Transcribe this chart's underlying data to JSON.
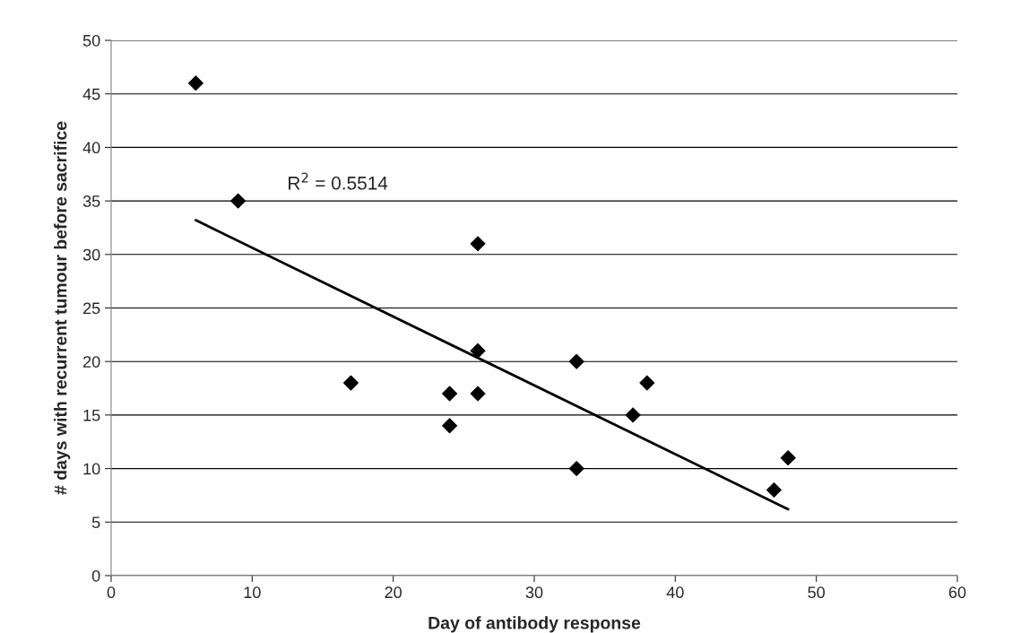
{
  "chart_data": {
    "type": "scatter",
    "xlabel": "Day of antibody response",
    "ylabel": "# days with recurrent tumour before sacrifice",
    "series": [
      {
        "type": "scatter",
        "color": "#000000",
        "marker": "diamond",
        "x": [
          6,
          9,
          17,
          24,
          24,
          26,
          26,
          26,
          33,
          33,
          37,
          38,
          47,
          48
        ],
        "values": [
          46,
          35,
          18,
          17,
          14,
          31,
          21,
          17,
          20,
          10,
          15,
          18,
          8,
          11
        ]
      },
      {
        "type": "line",
        "color": "#000000",
        "marker": "none",
        "line_style": "solid",
        "x": [
          6,
          48
        ],
        "values": [
          33.2,
          6.2
        ]
      }
    ],
    "annotations": [
      "R$^{2}$ = 0.5514"
    ],
    "xlim": [
      0,
      60
    ],
    "xticks": [
      0,
      10,
      20,
      30,
      40,
      50,
      60
    ],
    "ylim": [
      0,
      50
    ],
    "yticks": [
      0,
      5,
      10,
      15,
      20,
      25,
      30,
      35,
      40,
      45,
      50
    ],
    "grid": "y",
    "legend": false
  }
}
